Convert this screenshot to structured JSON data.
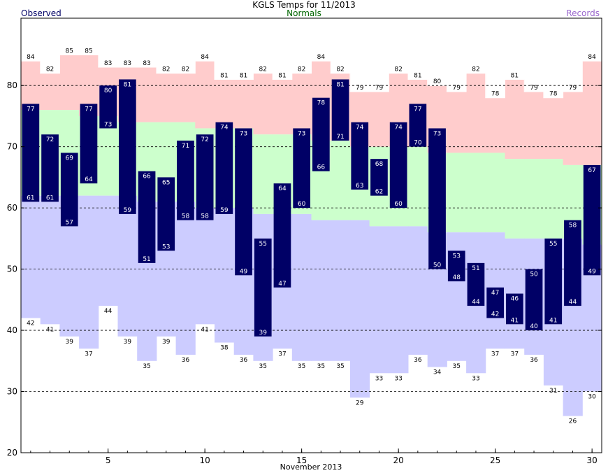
{
  "chart_data": {
    "type": "bar",
    "title": "KGLS Temps for 11/2013",
    "legend": {
      "observed": {
        "label": "Observed",
        "color": "#000066"
      },
      "normals": {
        "label": "Normals",
        "color": "#006600"
      },
      "records": {
        "label": "Records",
        "color": "#9966cc"
      }
    },
    "xlabel": "November 2013",
    "days": [
      1,
      2,
      3,
      4,
      5,
      6,
      7,
      8,
      9,
      10,
      11,
      12,
      13,
      14,
      15,
      16,
      17,
      18,
      19,
      20,
      21,
      22,
      23,
      24,
      25,
      26,
      27,
      28,
      29,
      30
    ],
    "x_ticks": [
      5,
      10,
      15,
      20,
      25,
      30
    ],
    "y_ticks": [
      20,
      30,
      40,
      50,
      60,
      70,
      80
    ],
    "ylim": [
      20,
      91
    ],
    "grid": "dashed horizontal at 30, 40, 50, 60, 70, 80",
    "series": [
      {
        "name": "Observed",
        "role": "observed_high",
        "values": [
          77,
          72,
          69,
          77,
          80,
          81,
          66,
          65,
          71,
          72,
          74,
          73,
          55,
          64,
          73,
          78,
          81,
          74,
          68,
          74,
          77,
          73,
          53,
          51,
          47,
          46,
          50,
          55,
          58,
          67
        ]
      },
      {
        "name": "Observed",
        "role": "observed_low",
        "values": [
          61,
          61,
          57,
          64,
          73,
          59,
          51,
          53,
          58,
          58,
          59,
          49,
          39,
          47,
          60,
          66,
          71,
          63,
          62,
          60,
          70,
          50,
          48,
          44,
          42,
          41,
          40,
          41,
          44,
          49
        ]
      },
      {
        "name": "Normals",
        "role": "normal_high",
        "values": [
          76,
          76,
          76,
          75,
          75,
          74,
          74,
          74,
          74,
          73,
          73,
          73,
          72,
          72,
          72,
          71,
          71,
          70,
          70,
          70,
          70,
          69,
          69,
          69,
          69,
          68,
          68,
          68,
          67,
          67
        ]
      },
      {
        "name": "Normals",
        "role": "normal_low",
        "values": [
          62,
          62,
          62,
          62,
          62,
          62,
          61,
          61,
          61,
          60,
          60,
          60,
          59,
          59,
          59,
          58,
          58,
          58,
          57,
          57,
          57,
          56,
          56,
          56,
          56,
          55,
          55,
          55,
          55,
          54
        ]
      },
      {
        "name": "Records",
        "role": "record_high",
        "values": [
          84,
          82,
          85,
          85,
          83,
          83,
          83,
          82,
          82,
          84,
          81,
          81,
          82,
          81,
          82,
          84,
          82,
          79,
          79,
          82,
          81,
          80,
          79,
          82,
          78,
          81,
          79,
          78,
          79,
          84
        ]
      },
      {
        "name": "Records",
        "role": "record_low",
        "values": [
          42,
          41,
          39,
          37,
          44,
          39,
          35,
          39,
          36,
          41,
          38,
          36,
          35,
          37,
          35,
          35,
          35,
          29,
          33,
          33,
          36,
          34,
          35,
          33,
          37,
          37,
          36,
          31,
          26,
          30
        ]
      }
    ]
  }
}
